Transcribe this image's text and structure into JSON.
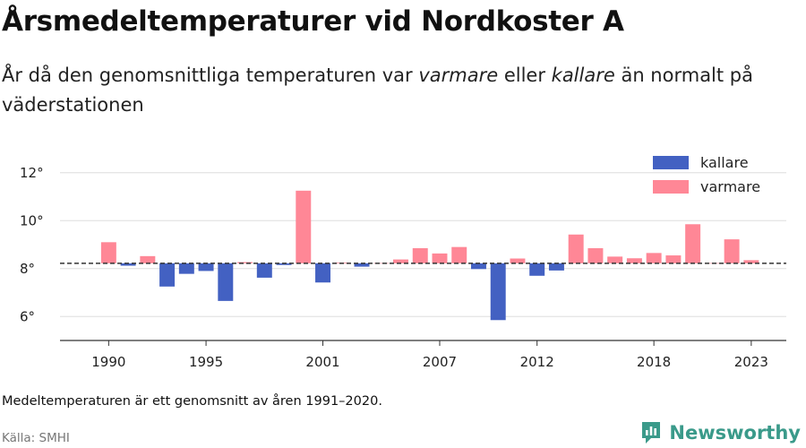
{
  "title": "Årsmedeltemperaturer vid Nordkoster A",
  "subtitle": {
    "part1": "År då den genomsnittliga temperaturen var ",
    "warmer_word": "varmare",
    "part2": " eller ",
    "colder_word": "kallare",
    "part3": " än normalt på väderstationen"
  },
  "footnote": "Medeltemperaturen är ett genomsnitt av åren 1991–2020.",
  "source": "Källa: SMHI",
  "brand": "Newsworthy",
  "colors": {
    "colder": "#4361c2",
    "warmer": "#ff8796",
    "baseline": "#333333",
    "grid": "#dddddd",
    "brand": "#3a9a8a"
  },
  "chart_data": {
    "type": "bar",
    "baseline": 8.22,
    "ylim": [
      5,
      13
    ],
    "yticks": [
      6,
      8,
      10,
      12
    ],
    "ytick_labels": [
      "6°",
      "8°",
      "10°",
      "12°"
    ],
    "xticks": [
      1990,
      1995,
      2001,
      2007,
      2012,
      2018,
      2023
    ],
    "xlim": [
      1987.5,
      2024.8
    ],
    "grid": true,
    "legend_position": "top-right",
    "legend": [
      {
        "label": "kallare",
        "key": "colder"
      },
      {
        "label": "varmare",
        "key": "warmer"
      }
    ],
    "years": [
      1990,
      1991,
      1992,
      1993,
      1994,
      1995,
      1996,
      1997,
      1998,
      1999,
      2000,
      2001,
      2002,
      2003,
      2004,
      2005,
      2006,
      2007,
      2008,
      2009,
      2010,
      2011,
      2012,
      2013,
      2014,
      2015,
      2016,
      2017,
      2018,
      2019,
      2020,
      2021,
      2022,
      2023
    ],
    "values": [
      9.1,
      8.12,
      8.52,
      7.25,
      7.78,
      7.9,
      6.65,
      8.27,
      7.62,
      8.15,
      11.25,
      7.42,
      8.25,
      8.08,
      8.23,
      8.38,
      8.85,
      8.63,
      8.9,
      7.98,
      5.85,
      8.42,
      7.7,
      7.92,
      9.42,
      8.85,
      8.5,
      8.43,
      8.65,
      8.55,
      9.85,
      8.23,
      9.22,
      8.35
    ]
  }
}
